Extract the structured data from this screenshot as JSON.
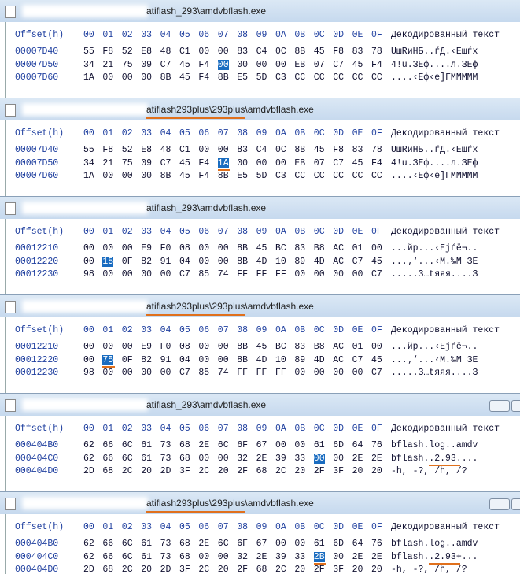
{
  "header": {
    "offset_label": "Offset(h)",
    "columns": [
      "00",
      "01",
      "02",
      "03",
      "04",
      "05",
      "06",
      "07",
      "08",
      "09",
      "0A",
      "0B",
      "0C",
      "0D",
      "0E",
      "0F"
    ],
    "decoded_label": "Декодированный текст"
  },
  "panels": [
    {
      "title": "atiflash_293\\amdvbflash.exe",
      "rows": [
        {
          "offset": "00007D40",
          "bytes": [
            "55",
            "F8",
            "52",
            "E8",
            "48",
            "C1",
            "00",
            "00",
            "83",
            "C4",
            "0C",
            "8B",
            "45",
            "F8",
            "83",
            "78"
          ],
          "text": "UшRиНБ..ѓД.‹Eшѓx"
        },
        {
          "offset": "00007D50",
          "bytes": [
            "34",
            "21",
            "75",
            "09",
            "C7",
            "45",
            "F4",
            "00",
            "00",
            "00",
            "00",
            "EB",
            "07",
            "C7",
            "45",
            "F4"
          ],
          "text": "4!u.ЗEф....л.ЗEф"
        },
        {
          "offset": "00007D60",
          "bytes": [
            "1A",
            "00",
            "00",
            "00",
            "8B",
            "45",
            "F4",
            "8B",
            "E5",
            "5D",
            "C3",
            "CC",
            "CC",
            "CC",
            "CC",
            "CC"
          ],
          "text": "....‹Eф‹е]ГМММММ"
        }
      ]
    },
    {
      "title": "atiflash293plus\\293plus\\amdvbflash.exe",
      "rows": [
        {
          "offset": "00007D40",
          "bytes": [
            "55",
            "F8",
            "52",
            "E8",
            "48",
            "C1",
            "00",
            "00",
            "83",
            "C4",
            "0C",
            "8B",
            "45",
            "F8",
            "83",
            "78"
          ],
          "text": "UшRиНБ..ѓД.‹Eшѓx"
        },
        {
          "offset": "00007D50",
          "bytes": [
            "34",
            "21",
            "75",
            "09",
            "C7",
            "45",
            "F4",
            "1A",
            "00",
            "00",
            "00",
            "EB",
            "07",
            "C7",
            "45",
            "F4"
          ],
          "text": "4!u.ЗEф....л.ЗEф"
        },
        {
          "offset": "00007D60",
          "bytes": [
            "1A",
            "00",
            "00",
            "00",
            "8B",
            "45",
            "F4",
            "8B",
            "E5",
            "5D",
            "C3",
            "CC",
            "CC",
            "CC",
            "CC",
            "CC"
          ],
          "text": "....‹Eф‹е]ГМММММ"
        }
      ]
    },
    {
      "title": "atiflash_293\\amdvbflash.exe",
      "rows": [
        {
          "offset": "00012210",
          "bytes": [
            "00",
            "00",
            "00",
            "E9",
            "F0",
            "08",
            "00",
            "00",
            "8B",
            "45",
            "BC",
            "83",
            "B8",
            "AC",
            "01",
            "00"
          ],
          "text": "...йр...‹Eјѓё¬.."
        },
        {
          "offset": "00012220",
          "bytes": [
            "00",
            "15",
            "0F",
            "82",
            "91",
            "04",
            "00",
            "00",
            "8B",
            "4D",
            "10",
            "89",
            "4D",
            "AC",
            "C7",
            "45"
          ],
          "text": "...‚‘...‹M.‰M ЗE"
        },
        {
          "offset": "00012230",
          "bytes": [
            "98",
            "00",
            "00",
            "00",
            "00",
            "C7",
            "85",
            "74",
            "FF",
            "FF",
            "FF",
            "00",
            "00",
            "00",
            "00",
            "C7"
          ],
          "text": ".....З…tяяя....З"
        }
      ]
    },
    {
      "title": "atiflash293plus\\293plus\\amdvbflash.exe",
      "rows": [
        {
          "offset": "00012210",
          "bytes": [
            "00",
            "00",
            "00",
            "E9",
            "F0",
            "08",
            "00",
            "00",
            "8B",
            "45",
            "BC",
            "83",
            "B8",
            "AC",
            "01",
            "00"
          ],
          "text": "...йр...‹Eјѓё¬.."
        },
        {
          "offset": "00012220",
          "bytes": [
            "00",
            "75",
            "0F",
            "82",
            "91",
            "04",
            "00",
            "00",
            "8B",
            "4D",
            "10",
            "89",
            "4D",
            "AC",
            "C7",
            "45"
          ],
          "text": "...‚‘...‹M.‰M ЗE"
        },
        {
          "offset": "00012230",
          "bytes": [
            "98",
            "00",
            "00",
            "00",
            "00",
            "C7",
            "85",
            "74",
            "FF",
            "FF",
            "FF",
            "00",
            "00",
            "00",
            "00",
            "C7"
          ],
          "text": ".....З…tяяя....З"
        }
      ]
    },
    {
      "title": "atiflash_293\\amdvbflash.exe",
      "rows": [
        {
          "offset": "000404B0",
          "bytes": [
            "62",
            "66",
            "6C",
            "61",
            "73",
            "68",
            "2E",
            "6C",
            "6F",
            "67",
            "00",
            "00",
            "61",
            "6D",
            "64",
            "76"
          ],
          "text": "bflash.log..amdv"
        },
        {
          "offset": "000404C0",
          "bytes": [
            "62",
            "66",
            "6C",
            "61",
            "73",
            "68",
            "00",
            "00",
            "32",
            "2E",
            "39",
            "33",
            "00",
            "00",
            "2E",
            "2E"
          ],
          "text": "bflash..2.93...."
        },
        {
          "offset": "000404D0",
          "bytes": [
            "2D",
            "68",
            "2C",
            "20",
            "2D",
            "3F",
            "2C",
            "20",
            "2F",
            "68",
            "2C",
            "20",
            "2F",
            "3F",
            "20",
            "20"
          ],
          "text": "-h, -?, /h, /?"
        }
      ]
    },
    {
      "title": "atiflash293plus\\293plus\\amdvbflash.exe",
      "rows": [
        {
          "offset": "000404B0",
          "bytes": [
            "62",
            "66",
            "6C",
            "61",
            "73",
            "68",
            "2E",
            "6C",
            "6F",
            "67",
            "00",
            "00",
            "61",
            "6D",
            "64",
            "76"
          ],
          "text": "bflash.log..amdv"
        },
        {
          "offset": "000404C0",
          "bytes": [
            "62",
            "66",
            "6C",
            "61",
            "73",
            "68",
            "00",
            "00",
            "32",
            "2E",
            "39",
            "33",
            "2B",
            "00",
            "2E",
            "2E"
          ],
          "text": "bflash..2.93+..."
        },
        {
          "offset": "000404D0",
          "bytes": [
            "2D",
            "68",
            "2C",
            "20",
            "2D",
            "3F",
            "2C",
            "20",
            "2F",
            "68",
            "2C",
            "20",
            "2F",
            "3F",
            "20",
            "20"
          ],
          "text": "-h, -?, /h, /?"
        }
      ]
    }
  ]
}
